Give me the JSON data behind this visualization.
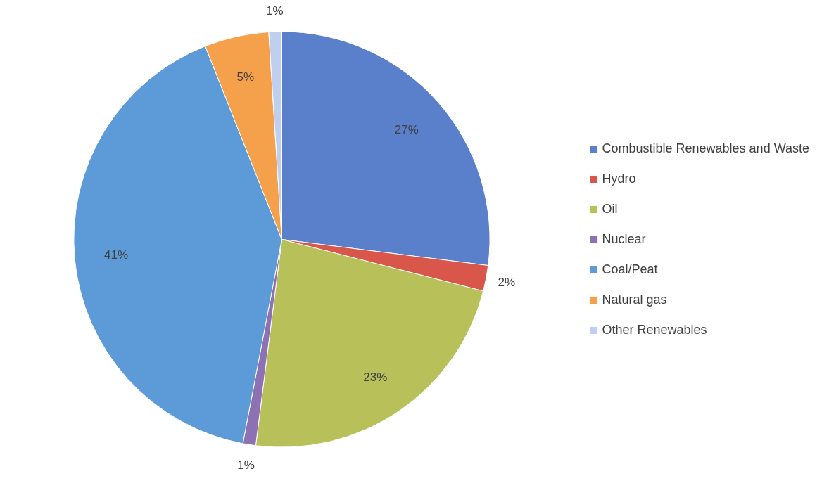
{
  "chart_data": {
    "type": "pie",
    "categories": [
      "Combustible Renewables and Waste",
      "Hydro",
      "Oil",
      "Nuclear",
      "Coal/Peat",
      "Natural gas",
      "Other Renewables"
    ],
    "values": [
      27,
      2,
      23,
      1,
      41,
      5,
      1
    ],
    "colors": [
      "#5a80cc",
      "#d9574a",
      "#b8c05a",
      "#8c72b5",
      "#5c9bd8",
      "#f5a04a",
      "#c0cff0"
    ],
    "value_labels": [
      "27%",
      "2%",
      "23%",
      "1%",
      "41%",
      "5%",
      "1%"
    ],
    "legend": "right"
  }
}
